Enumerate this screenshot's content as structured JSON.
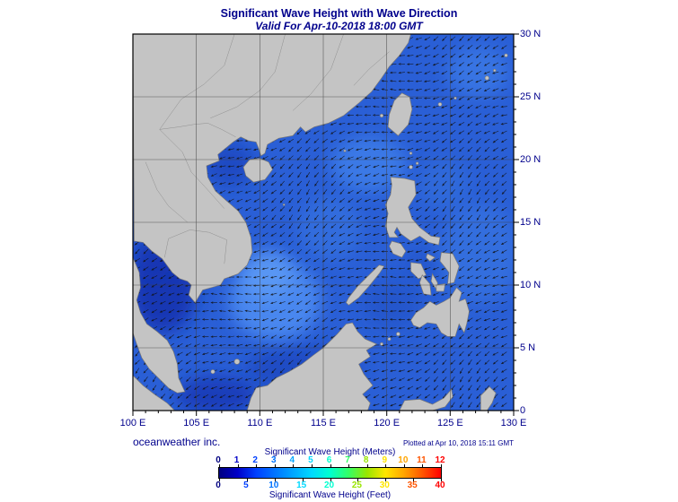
{
  "header": {
    "title": "Significant Wave Height with Wave Direction",
    "subtitle": "Valid For Apr-10-2018 18:00 GMT"
  },
  "footer": {
    "credit": "oceanweather inc.",
    "plotted": "Plotted at Apr 10, 2018 15:11 GMT"
  },
  "axes": {
    "x_labels": [
      "100 E",
      "105 E",
      "110 E",
      "115 E",
      "120 E",
      "125 E",
      "130 E"
    ],
    "y_labels": [
      "30 N",
      "25 N",
      "20 N",
      "15 N",
      "10 N",
      "5 N",
      "0"
    ]
  },
  "colorbar": {
    "meters_label": "Significant Wave Height (Meters)",
    "feet_label": "Significant Wave Height (Feet)",
    "meters_ticks": [
      0,
      1,
      2,
      3,
      4,
      5,
      6,
      7,
      8,
      9,
      10,
      11,
      12
    ],
    "feet_ticks": [
      0,
      5,
      10,
      15,
      20,
      25,
      30,
      35,
      40
    ],
    "colors": [
      "#000080",
      "#0000C8",
      "#0040FF",
      "#0073FF",
      "#00A6FF",
      "#00D9FF",
      "#00FFD0",
      "#33FF66",
      "#99E600",
      "#FFE600",
      "#FFA500",
      "#FF5500",
      "#FF0000"
    ]
  },
  "map": {
    "ocean_base": "#2A5FD6",
    "land_fill": "#C4C4C4",
    "land_stroke": "#777777",
    "grid_color": "#3F3F3F",
    "frame_color": "#000000",
    "arrow_color": "#121212",
    "text_color": "#00008C"
  },
  "chart_data": {
    "type": "heatmap",
    "title": "Significant Wave Height with Wave Direction",
    "valid_time": "Apr-10-2018 18:00 GMT",
    "lon_range_deg_e": [
      100,
      130
    ],
    "lat_range_deg_n": [
      0,
      30
    ],
    "x_ticks_deg_e": [
      100,
      105,
      110,
      115,
      120,
      125,
      130
    ],
    "y_ticks_deg_n": [
      0,
      5,
      10,
      15,
      20,
      25,
      30
    ],
    "scale_meters": [
      0,
      1,
      2,
      3,
      4,
      5,
      6,
      7,
      8,
      9,
      10,
      11,
      12
    ],
    "scale_feet": [
      0,
      5,
      10,
      15,
      20,
      25,
      30,
      35,
      40
    ],
    "depicted_range_meters": [
      0,
      2.5
    ],
    "overlay": "wave direction arrows on ocean grid"
  }
}
